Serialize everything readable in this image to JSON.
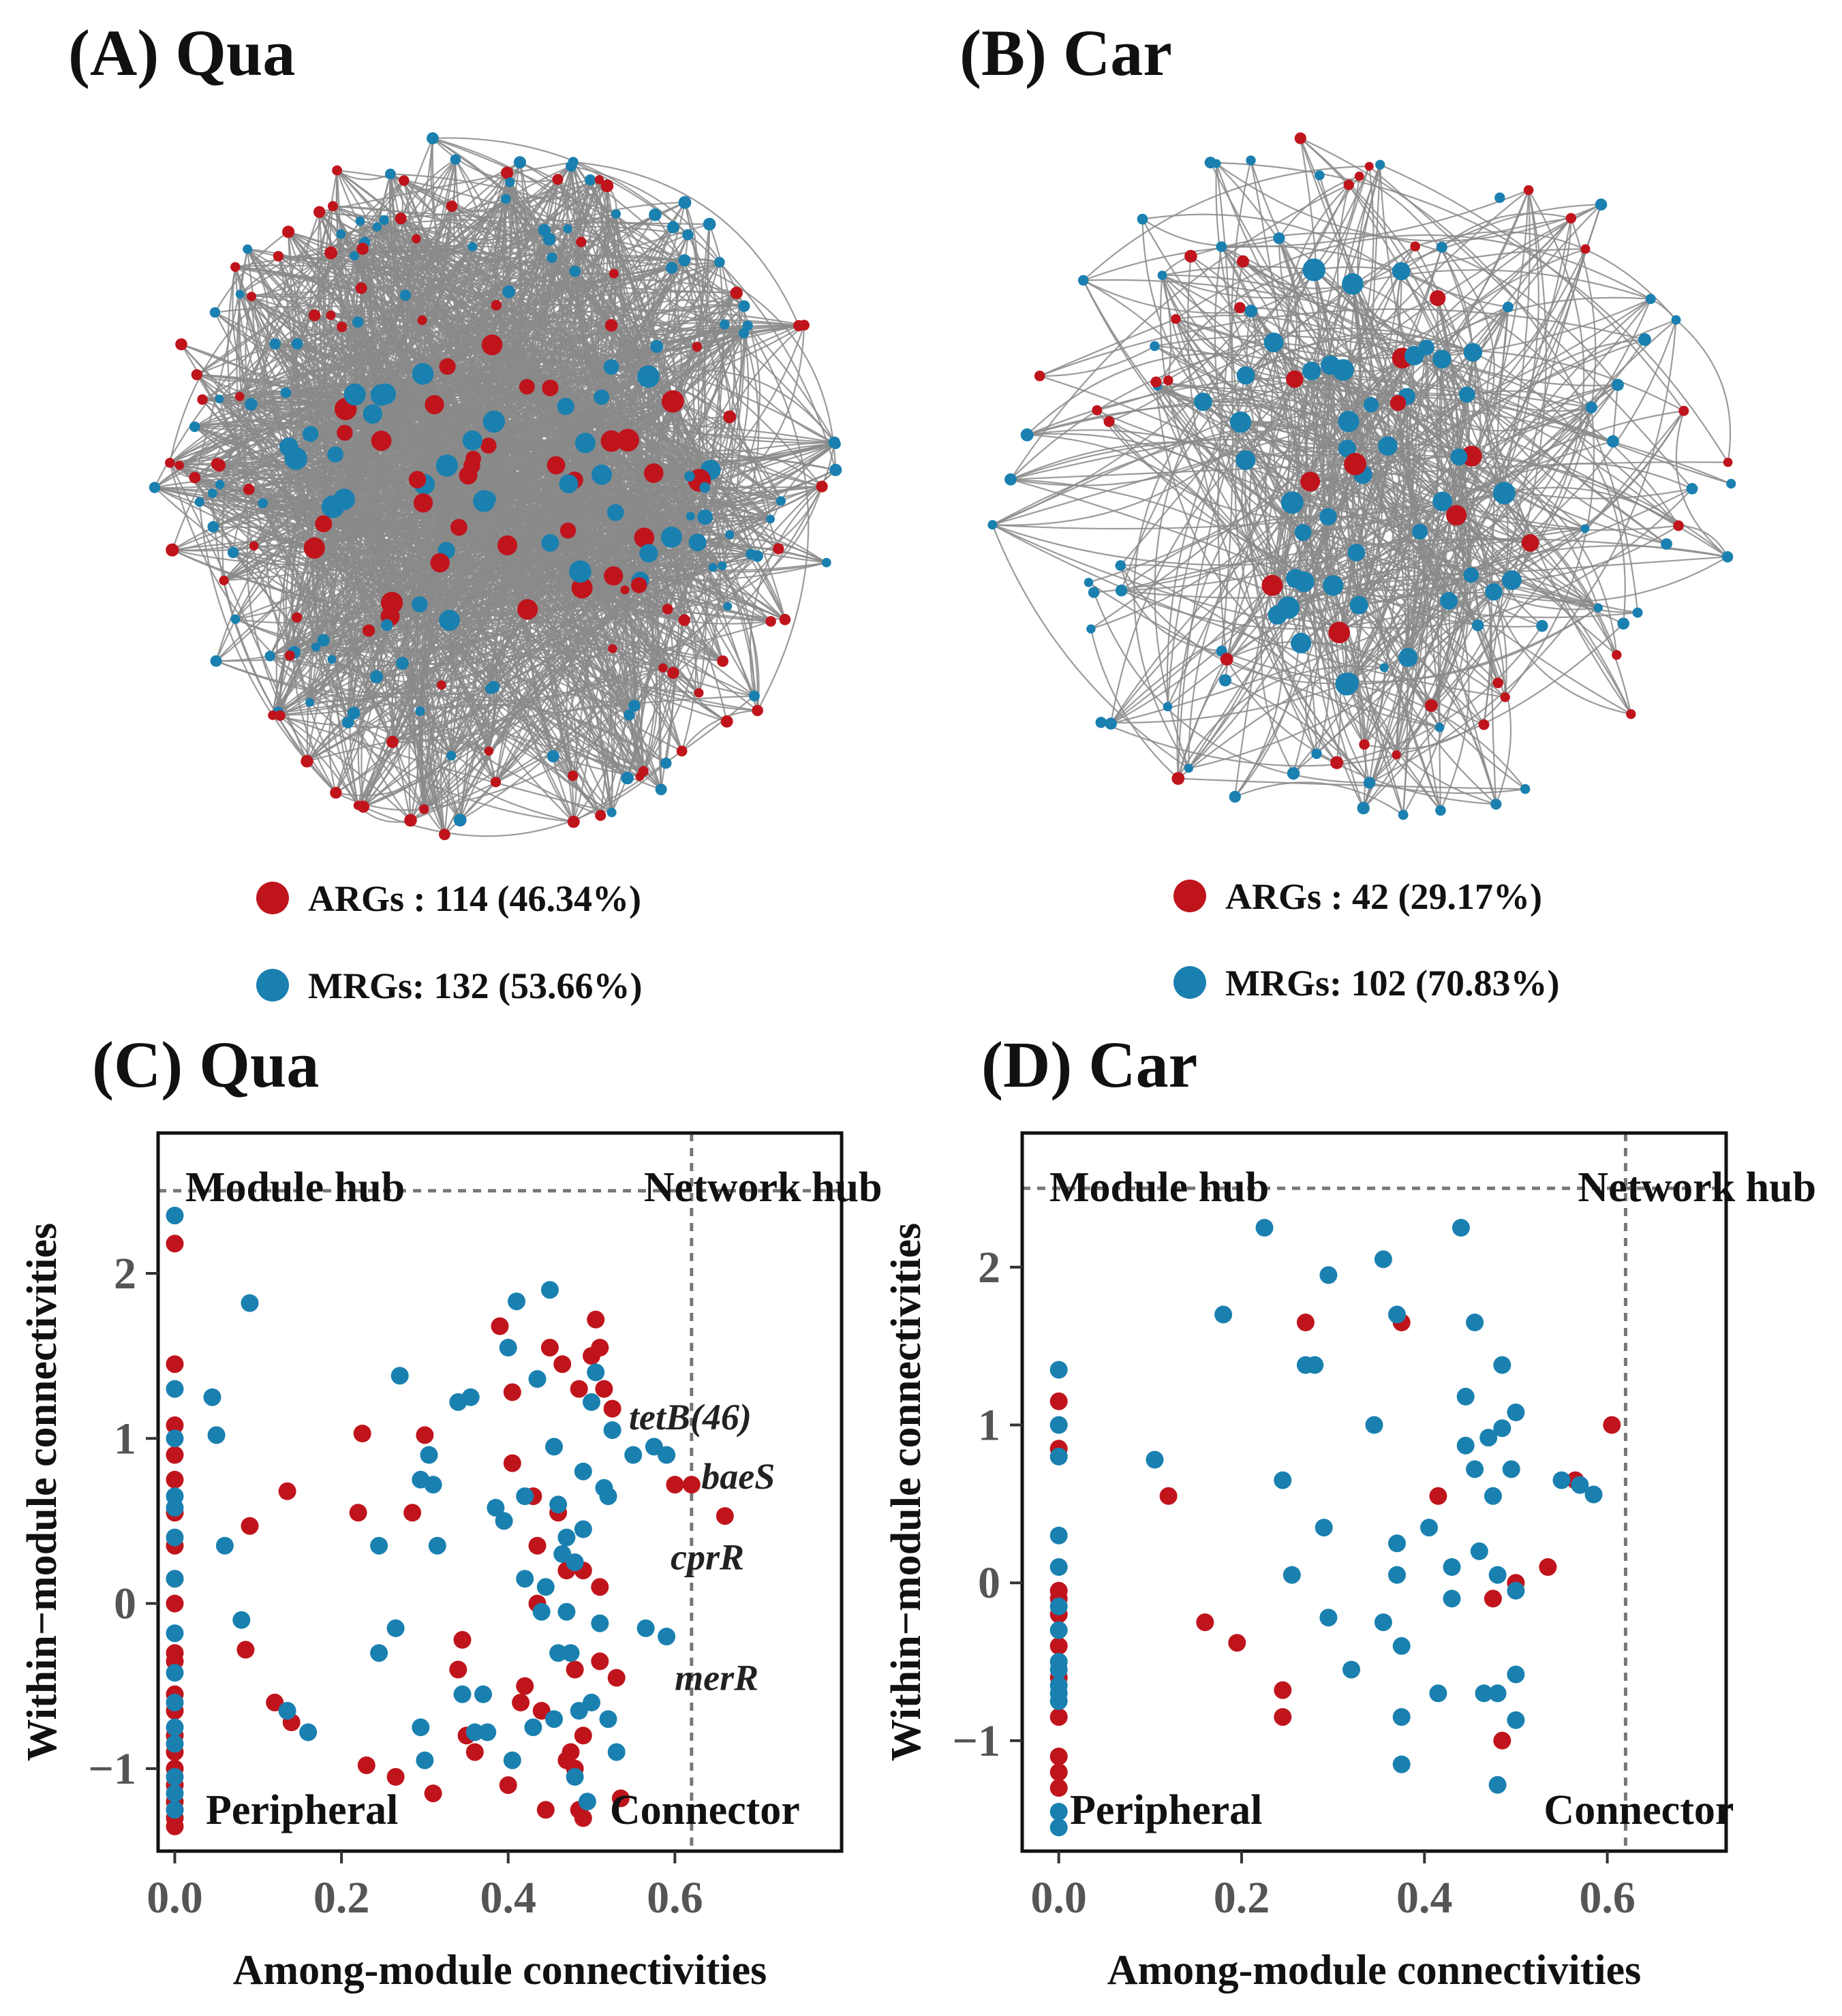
{
  "colors": {
    "arg": "#c0141c",
    "mrg": "#1a80b0",
    "edge": "#8a8a8a",
    "guide": "#777777"
  },
  "networks": [
    {
      "id": "A",
      "title": "(A) Qua",
      "legend": [
        {
          "label": "ARGs : 114 (46.34%)",
          "color": "#c0141c"
        },
        {
          "label": "MRGs: 132 (53.66%)",
          "color": "#1a80b0"
        }
      ],
      "n_arg": 114,
      "n_mrg": 132
    },
    {
      "id": "B",
      "title": "(B) Car",
      "legend": [
        {
          "label": "ARGs : 42 (29.17%)",
          "color": "#c0141c"
        },
        {
          "label": "MRGs: 102 (70.83%)",
          "color": "#1a80b0"
        }
      ],
      "n_arg": 42,
      "n_mrg": 102
    }
  ],
  "chart_data": [
    {
      "id": "C",
      "type": "scatter",
      "title": "(C) Qua",
      "xlabel": "Among-module connectivities",
      "ylabel": "Within−module connectivities",
      "xlim": [
        -0.02,
        0.8
      ],
      "ylim": [
        -1.5,
        2.85
      ],
      "xticks": [
        {
          "value": 0.0,
          "label": "0.0"
        },
        {
          "value": 0.2,
          "label": "0.2"
        },
        {
          "value": 0.4,
          "label": "0.4"
        },
        {
          "value": 0.6,
          "label": "0.6"
        }
      ],
      "yticks": [
        {
          "value": -1,
          "label": "−1"
        },
        {
          "value": 0,
          "label": "0"
        },
        {
          "value": 1,
          "label": "1"
        },
        {
          "value": 2,
          "label": "2"
        }
      ],
      "thresholds": {
        "x": 0.62,
        "y": 2.5
      },
      "regions": {
        "module_hub": "Module hub",
        "network_hub": "Network hub",
        "peripheral": "Peripheral",
        "connector": "Connector"
      },
      "annotations": [
        {
          "text": "tetB(46)",
          "x": 0.535,
          "y": 1.13
        },
        {
          "text": "baeS",
          "x": 0.622,
          "y": 0.77
        },
        {
          "text": "cprR",
          "x": 0.585,
          "y": 0.28
        },
        {
          "text": "merR",
          "x": 0.59,
          "y": -0.45
        }
      ],
      "series": [
        {
          "name": "ARGs",
          "color": "#c0141c",
          "points": [
            [
              0,
              2.18
            ],
            [
              0,
              1.45
            ],
            [
              0,
              1.08
            ],
            [
              0,
              0.9
            ],
            [
              0,
              0.75
            ],
            [
              0,
              0.55
            ],
            [
              0,
              0.35
            ],
            [
              0,
              0.15
            ],
            [
              0,
              0.0
            ],
            [
              0,
              -0.3
            ],
            [
              0,
              -0.35
            ],
            [
              0,
              -0.55
            ],
            [
              0,
              -0.65
            ],
            [
              0,
              -0.8
            ],
            [
              0,
              -0.9
            ],
            [
              0,
              -1.0
            ],
            [
              0,
              -1.1
            ],
            [
              0,
              -1.2
            ],
            [
              0,
              -1.25
            ],
            [
              0,
              -1.3
            ],
            [
              0,
              -1.35
            ],
            [
              0.09,
              0.47
            ],
            [
              0.085,
              -0.28
            ],
            [
              0.135,
              0.68
            ],
            [
              0.12,
              -0.6
            ],
            [
              0.14,
              -0.72
            ],
            [
              0.225,
              1.03
            ],
            [
              0.22,
              0.55
            ],
            [
              0.23,
              -0.98
            ],
            [
              0.265,
              -1.05
            ],
            [
              0.3,
              1.02
            ],
            [
              0.285,
              0.55
            ],
            [
              0.31,
              -1.15
            ],
            [
              0.345,
              -0.22
            ],
            [
              0.34,
              -0.4
            ],
            [
              0.35,
              -0.8
            ],
            [
              0.36,
              -0.9
            ],
            [
              0.39,
              1.68
            ],
            [
              0.405,
              1.28
            ],
            [
              0.405,
              0.85
            ],
            [
              0.4,
              -1.1
            ],
            [
              0.415,
              -0.6
            ],
            [
              0.42,
              -0.5
            ],
            [
              0.43,
              0.65
            ],
            [
              0.435,
              0.35
            ],
            [
              0.435,
              0.0
            ],
            [
              0.44,
              -0.65
            ],
            [
              0.445,
              -1.25
            ],
            [
              0.45,
              1.55
            ],
            [
              0.465,
              1.45
            ],
            [
              0.46,
              0.55
            ],
            [
              0.47,
              0.2
            ],
            [
              0.48,
              -0.4
            ],
            [
              0.475,
              -0.9
            ],
            [
              0.48,
              -1.0
            ],
            [
              0.485,
              1.3
            ],
            [
              0.49,
              0.2
            ],
            [
              0.49,
              -0.8
            ],
            [
              0.49,
              -1.3
            ],
            [
              0.5,
              1.5
            ],
            [
              0.505,
              1.72
            ],
            [
              0.51,
              1.55
            ],
            [
              0.515,
              1.3
            ],
            [
              0.525,
              1.18
            ],
            [
              0.51,
              0.1
            ],
            [
              0.51,
              -0.35
            ],
            [
              0.53,
              -0.45
            ],
            [
              0.535,
              -1.18
            ],
            [
              0.6,
              0.72
            ],
            [
              0.62,
              0.72
            ],
            [
              0.66,
              0.53
            ],
            [
              0.485,
              -1.25
            ],
            [
              0.47,
              -0.95
            ]
          ]
        },
        {
          "name": "MRGs",
          "color": "#1a80b0",
          "points": [
            [
              0,
              2.35
            ],
            [
              0,
              1.3
            ],
            [
              0,
              1.0
            ],
            [
              0,
              0.65
            ],
            [
              0,
              0.58
            ],
            [
              0,
              0.4
            ],
            [
              0,
              0.15
            ],
            [
              0,
              -0.18
            ],
            [
              0,
              -0.42
            ],
            [
              0,
              -0.6
            ],
            [
              0,
              -0.75
            ],
            [
              0,
              -0.85
            ],
            [
              0,
              -1.05
            ],
            [
              0,
              -1.15
            ],
            [
              0,
              -1.25
            ],
            [
              0.045,
              1.25
            ],
            [
              0.05,
              1.02
            ],
            [
              0.06,
              0.35
            ],
            [
              0.08,
              -0.1
            ],
            [
              0.09,
              1.82
            ],
            [
              0.135,
              -0.65
            ],
            [
              0.16,
              -0.78
            ],
            [
              0.245,
              0.35
            ],
            [
              0.245,
              -0.3
            ],
            [
              0.265,
              -0.15
            ],
            [
              0.27,
              1.38
            ],
            [
              0.295,
              0.75
            ],
            [
              0.305,
              0.9
            ],
            [
              0.31,
              0.72
            ],
            [
              0.315,
              0.35
            ],
            [
              0.295,
              -0.75
            ],
            [
              0.3,
              -0.95
            ],
            [
              0.34,
              1.22
            ],
            [
              0.345,
              -0.55
            ],
            [
              0.355,
              1.25
            ],
            [
              0.36,
              -0.78
            ],
            [
              0.375,
              -0.78
            ],
            [
              0.37,
              -0.55
            ],
            [
              0.385,
              0.58
            ],
            [
              0.395,
              0.5
            ],
            [
              0.4,
              1.55
            ],
            [
              0.405,
              -0.95
            ],
            [
              0.41,
              1.83
            ],
            [
              0.42,
              0.65
            ],
            [
              0.42,
              0.15
            ],
            [
              0.43,
              -0.75
            ],
            [
              0.435,
              1.36
            ],
            [
              0.44,
              -0.05
            ],
            [
              0.445,
              0.1
            ],
            [
              0.45,
              1.9
            ],
            [
              0.455,
              0.95
            ],
            [
              0.46,
              0.6
            ],
            [
              0.46,
              -0.3
            ],
            [
              0.465,
              0.3
            ],
            [
              0.47,
              0.4
            ],
            [
              0.47,
              -0.05
            ],
            [
              0.475,
              -0.3
            ],
            [
              0.48,
              0.25
            ],
            [
              0.49,
              0.8
            ],
            [
              0.49,
              0.45
            ],
            [
              0.48,
              -1.05
            ],
            [
              0.495,
              -1.2
            ],
            [
              0.5,
              1.22
            ],
            [
              0.5,
              -0.6
            ],
            [
              0.505,
              1.4
            ],
            [
              0.51,
              -0.12
            ],
            [
              0.515,
              0.7
            ],
            [
              0.52,
              0.65
            ],
            [
              0.525,
              1.05
            ],
            [
              0.53,
              -0.9
            ],
            [
              0.55,
              0.9
            ],
            [
              0.575,
              0.95
            ],
            [
              0.59,
              0.9
            ],
            [
              0.565,
              -0.15
            ],
            [
              0.59,
              -0.2
            ],
            [
              0.52,
              -0.7
            ],
            [
              0.455,
              -0.7
            ],
            [
              0.485,
              -0.65
            ]
          ]
        }
      ]
    },
    {
      "id": "D",
      "type": "scatter",
      "title": "(D) Car",
      "xlabel": "Among-module connectivities",
      "ylabel": "Within−module connectivities",
      "xlim": [
        -0.04,
        0.73
      ],
      "ylim": [
        -1.7,
        2.85
      ],
      "xticks": [
        {
          "value": 0.0,
          "label": "0.0"
        },
        {
          "value": 0.2,
          "label": "0.2"
        },
        {
          "value": 0.4,
          "label": "0.4"
        },
        {
          "value": 0.6,
          "label": "0.6"
        }
      ],
      "yticks": [
        {
          "value": -1,
          "label": "−1"
        },
        {
          "value": 0,
          "label": "0"
        },
        {
          "value": 1,
          "label": "1"
        },
        {
          "value": 2,
          "label": "2"
        }
      ],
      "thresholds": {
        "x": 0.62,
        "y": 2.5
      },
      "regions": {
        "module_hub": "Module hub",
        "network_hub": "Network hub",
        "peripheral": "Peripheral",
        "connector": "Connector"
      },
      "annotations": [],
      "series": [
        {
          "name": "ARGs",
          "color": "#c0141c",
          "points": [
            [
              0,
              1.15
            ],
            [
              0,
              0.85
            ],
            [
              0,
              -0.05
            ],
            [
              0,
              -0.1
            ],
            [
              0,
              -0.2
            ],
            [
              0,
              -0.4
            ],
            [
              0,
              -0.6
            ],
            [
              0,
              -0.85
            ],
            [
              0,
              -1.1
            ],
            [
              0,
              -1.2
            ],
            [
              0,
              -1.3
            ],
            [
              0.12,
              0.55
            ],
            [
              0.16,
              -0.25
            ],
            [
              0.195,
              -0.38
            ],
            [
              0.245,
              -0.68
            ],
            [
              0.245,
              -0.85
            ],
            [
              0.27,
              1.65
            ],
            [
              0.375,
              1.65
            ],
            [
              0.415,
              0.55
            ],
            [
              0.475,
              -0.1
            ],
            [
              0.485,
              -1.0
            ],
            [
              0.5,
              0.0
            ],
            [
              0.535,
              0.1
            ],
            [
              0.565,
              0.65
            ],
            [
              0.605,
              1.0
            ]
          ]
        },
        {
          "name": "MRGs",
          "color": "#1a80b0",
          "points": [
            [
              0,
              1.35
            ],
            [
              0,
              1.0
            ],
            [
              0,
              0.8
            ],
            [
              0,
              0.3
            ],
            [
              0,
              0.1
            ],
            [
              0,
              -0.15
            ],
            [
              0,
              -0.3
            ],
            [
              0,
              -0.5
            ],
            [
              0,
              -0.55
            ],
            [
              0,
              -0.65
            ],
            [
              0,
              -0.7
            ],
            [
              0,
              -0.75
            ],
            [
              0,
              -1.45
            ],
            [
              0,
              -1.55
            ],
            [
              0.105,
              0.78
            ],
            [
              0.18,
              1.7
            ],
            [
              0.225,
              2.25
            ],
            [
              0.245,
              0.65
            ],
            [
              0.255,
              0.05
            ],
            [
              0.27,
              1.38
            ],
            [
              0.28,
              1.38
            ],
            [
              0.29,
              0.35
            ],
            [
              0.295,
              1.95
            ],
            [
              0.295,
              -0.22
            ],
            [
              0.32,
              -0.55
            ],
            [
              0.345,
              1.0
            ],
            [
              0.355,
              2.05
            ],
            [
              0.355,
              -0.25
            ],
            [
              0.37,
              1.7
            ],
            [
              0.37,
              0.25
            ],
            [
              0.37,
              0.05
            ],
            [
              0.375,
              -0.4
            ],
            [
              0.375,
              -0.85
            ],
            [
              0.375,
              -1.15
            ],
            [
              0.405,
              0.35
            ],
            [
              0.415,
              -0.7
            ],
            [
              0.43,
              0.1
            ],
            [
              0.43,
              -0.1
            ],
            [
              0.44,
              2.25
            ],
            [
              0.445,
              1.18
            ],
            [
              0.445,
              0.87
            ],
            [
              0.455,
              1.65
            ],
            [
              0.455,
              0.72
            ],
            [
              0.46,
              0.2
            ],
            [
              0.465,
              -0.7
            ],
            [
              0.47,
              0.92
            ],
            [
              0.475,
              0.55
            ],
            [
              0.48,
              0.05
            ],
            [
              0.48,
              -0.7
            ],
            [
              0.48,
              -1.28
            ],
            [
              0.485,
              1.38
            ],
            [
              0.485,
              0.98
            ],
            [
              0.495,
              0.72
            ],
            [
              0.5,
              1.08
            ],
            [
              0.5,
              -0.05
            ],
            [
              0.5,
              -0.58
            ],
            [
              0.5,
              -0.87
            ],
            [
              0.55,
              0.65
            ],
            [
              0.57,
              0.62
            ],
            [
              0.585,
              0.56
            ]
          ]
        }
      ]
    }
  ]
}
